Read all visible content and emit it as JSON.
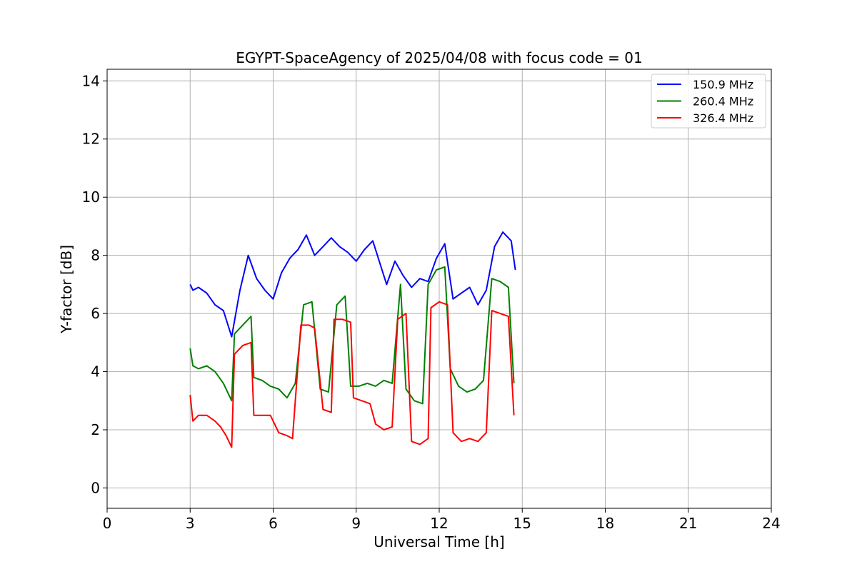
{
  "chart_data": {
    "type": "line",
    "title": "EGYPT-SpaceAgency of 2025/04/08 with focus code = 01",
    "xlabel": "Universal Time [h]",
    "ylabel": "Y-factor [dB]",
    "xlim": [
      0,
      24
    ],
    "ylim": [
      -0.7,
      14.4
    ],
    "xticks": [
      0,
      3,
      6,
      9,
      12,
      15,
      18,
      21,
      24
    ],
    "yticks": [
      0,
      2,
      4,
      6,
      8,
      10,
      12,
      14
    ],
    "grid": true,
    "legend_position": "top-right",
    "series": [
      {
        "name": "150.9 MHz",
        "color": "#0000ff",
        "x": [
          3.0,
          3.1,
          3.3,
          3.6,
          3.9,
          4.2,
          4.5,
          4.8,
          5.1,
          5.4,
          5.7,
          6.0,
          6.3,
          6.6,
          6.9,
          7.2,
          7.5,
          7.8,
          8.1,
          8.4,
          8.7,
          9.0,
          9.3,
          9.6,
          9.9,
          10.1,
          10.4,
          10.7,
          11.0,
          11.3,
          11.6,
          11.9,
          12.2,
          12.5,
          12.8,
          13.1,
          13.4,
          13.7,
          14.0,
          14.3,
          14.6,
          14.75
        ],
        "y": [
          7.0,
          6.8,
          6.9,
          6.7,
          6.3,
          6.1,
          5.2,
          6.8,
          8.0,
          7.2,
          6.8,
          6.5,
          7.4,
          7.9,
          8.2,
          8.7,
          8.0,
          8.3,
          8.6,
          8.3,
          8.1,
          7.8,
          8.2,
          8.5,
          7.6,
          7.0,
          7.8,
          7.3,
          6.9,
          7.2,
          7.1,
          7.9,
          8.4,
          6.5,
          6.7,
          6.9,
          6.3,
          6.8,
          8.3,
          8.8,
          8.5,
          7.5
        ]
      },
      {
        "name": "260.4 MHz",
        "color": "#008000",
        "x": [
          3.0,
          3.1,
          3.3,
          3.6,
          3.9,
          4.2,
          4.5,
          4.6,
          4.9,
          5.2,
          5.3,
          5.6,
          5.9,
          6.2,
          6.5,
          6.8,
          7.1,
          7.4,
          7.7,
          8.0,
          8.3,
          8.6,
          8.8,
          9.1,
          9.4,
          9.7,
          10.0,
          10.3,
          10.6,
          10.8,
          11.1,
          11.4,
          11.6,
          11.9,
          12.2,
          12.4,
          12.7,
          13.0,
          13.3,
          13.6,
          13.9,
          14.2,
          14.5,
          14.7
        ],
        "y": [
          4.8,
          4.2,
          4.1,
          4.2,
          4.0,
          3.6,
          3.0,
          5.3,
          5.6,
          5.9,
          3.8,
          3.7,
          3.5,
          3.4,
          3.1,
          3.6,
          6.3,
          6.4,
          3.4,
          3.3,
          6.3,
          6.6,
          3.5,
          3.5,
          3.6,
          3.5,
          3.7,
          3.6,
          7.0,
          3.4,
          3.0,
          2.9,
          7.0,
          7.5,
          7.6,
          4.1,
          3.5,
          3.3,
          3.4,
          3.7,
          7.2,
          7.1,
          6.9,
          3.6
        ]
      },
      {
        "name": "326.4 MHz",
        "color": "#ff0000",
        "x": [
          3.0,
          3.1,
          3.3,
          3.6,
          3.9,
          4.1,
          4.3,
          4.5,
          4.6,
          4.9,
          5.2,
          5.3,
          5.6,
          5.9,
          6.2,
          6.5,
          6.7,
          7.0,
          7.3,
          7.5,
          7.8,
          8.1,
          8.2,
          8.5,
          8.8,
          8.9,
          9.2,
          9.5,
          9.7,
          10.0,
          10.3,
          10.5,
          10.8,
          11.0,
          11.3,
          11.6,
          11.7,
          12.0,
          12.3,
          12.5,
          12.8,
          13.1,
          13.4,
          13.7,
          13.9,
          14.2,
          14.5,
          14.7
        ],
        "y": [
          3.2,
          2.3,
          2.5,
          2.5,
          2.3,
          2.1,
          1.8,
          1.4,
          4.6,
          4.9,
          5.0,
          2.5,
          2.5,
          2.5,
          1.9,
          1.8,
          1.7,
          5.6,
          5.6,
          5.5,
          2.7,
          2.6,
          5.8,
          5.8,
          5.7,
          3.1,
          3.0,
          2.9,
          2.2,
          2.0,
          2.1,
          5.8,
          6.0,
          1.6,
          1.5,
          1.7,
          6.2,
          6.4,
          6.3,
          1.9,
          1.6,
          1.7,
          1.6,
          1.9,
          6.1,
          6.0,
          5.9,
          2.5
        ]
      }
    ]
  }
}
